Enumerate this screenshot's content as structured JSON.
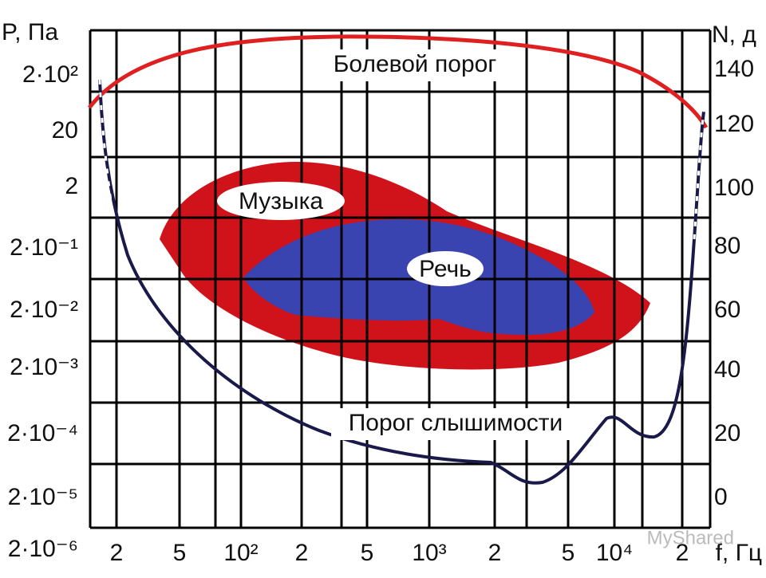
{
  "left_axis": {
    "title": "P, Па",
    "labels": [
      "2·10²",
      "20",
      "2",
      "2·10⁻¹",
      "2·10⁻²",
      "2·10⁻³",
      "2·10⁻⁴",
      "2·10⁻⁵",
      "2·10⁻⁶"
    ]
  },
  "right_axis": {
    "title": "N, д",
    "labels": [
      "140",
      "120",
      "100",
      "80",
      "60",
      "40",
      "20",
      "0"
    ]
  },
  "bottom_axis": {
    "labels": [
      "2",
      "5",
      "10²",
      "2",
      "5",
      "10³",
      "2",
      "5",
      "10⁴",
      "2"
    ],
    "title": "f, Гц"
  },
  "regions": {
    "pain_threshold": "Болевой порог",
    "music": "Музыка",
    "speech": "Речь",
    "hearing_threshold": "Порог слышимости"
  },
  "watermark": "MyShared"
}
